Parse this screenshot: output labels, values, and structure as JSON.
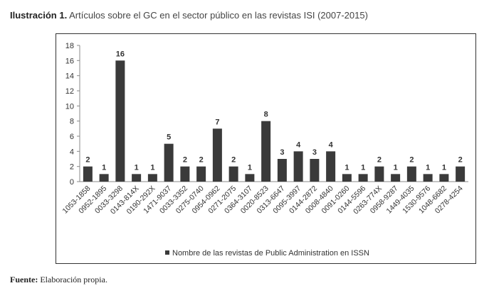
{
  "caption": {
    "label": "Ilustración 1.",
    "text": "Artículos sobre el GC en el sector público en las revistas ISI (2007-2015)"
  },
  "source": {
    "label": "Fuente:",
    "text": "Elaboración propia."
  },
  "chart_data": {
    "type": "bar",
    "title": "",
    "xlabel": "",
    "ylabel": "",
    "ylim": [
      0,
      18
    ],
    "yticks": [
      0,
      2,
      4,
      6,
      8,
      10,
      12,
      14,
      16,
      18
    ],
    "grid": false,
    "legend": {
      "position": "bottom",
      "entries": [
        "Nombre de las revistas de Public Administration en ISSN"
      ]
    },
    "color": "#3a3a3a",
    "categories": [
      "1053-1858",
      "0952-1895",
      "0033-3298",
      "0143-814X",
      "0190-292X",
      "1471-9037",
      "0033-3352",
      "0275-0740",
      "0954-0962",
      "0271-2075",
      "0364-3107",
      "0020-8523",
      "0313-6647",
      "0095-3997",
      "0144-2872",
      "0008-4840",
      "0091-0260",
      "0144-5596",
      "0263-774X",
      "0958-9287",
      "1449-4035",
      "1530-9576",
      "1048-6682",
      "0278-4254"
    ],
    "series": [
      {
        "name": "Nombre de las revistas de Public Administration en ISSN",
        "values": [
          2,
          1,
          16,
          1,
          1,
          5,
          2,
          2,
          7,
          2,
          1,
          8,
          3,
          4,
          3,
          4,
          1,
          1,
          2,
          1,
          2,
          1,
          1,
          2
        ]
      }
    ]
  }
}
